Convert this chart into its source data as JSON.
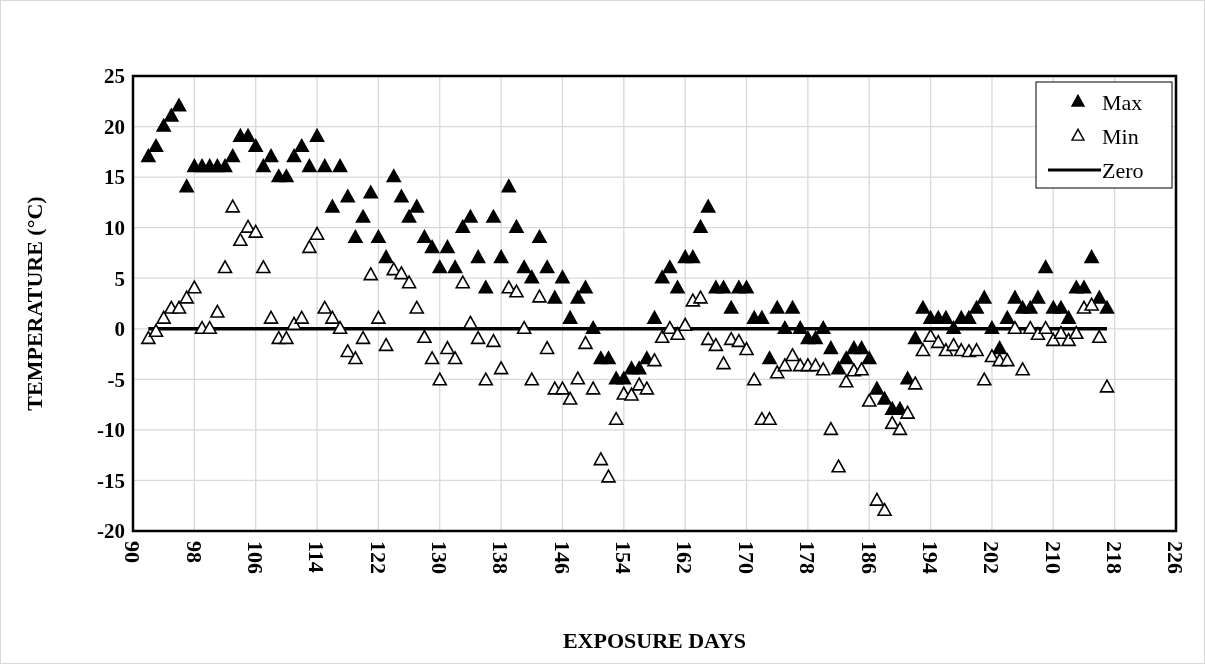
{
  "chart_data": {
    "type": "scatter",
    "xlabel": "EXPOSURE DAYS",
    "ylabel": "TEMPERATURE (°C)",
    "x": [
      92,
      93,
      94,
      95,
      96,
      97,
      98,
      99,
      100,
      101,
      102,
      103,
      104,
      105,
      106,
      107,
      108,
      109,
      110,
      111,
      112,
      113,
      114,
      115,
      116,
      117,
      118,
      119,
      120,
      121,
      122,
      123,
      124,
      125,
      126,
      127,
      128,
      129,
      130,
      131,
      132,
      133,
      134,
      135,
      136,
      137,
      138,
      139,
      140,
      141,
      142,
      143,
      144,
      145,
      146,
      147,
      148,
      149,
      150,
      151,
      152,
      153,
      154,
      155,
      156,
      157,
      158,
      159,
      160,
      161,
      162,
      163,
      164,
      165,
      166,
      167,
      168,
      169,
      170,
      171,
      172,
      173,
      174,
      175,
      176,
      177,
      178,
      179,
      180,
      181,
      182,
      183,
      184,
      185,
      186,
      187,
      188,
      189,
      190,
      191,
      192,
      193,
      194,
      195,
      196,
      197,
      198,
      199,
      200,
      201,
      202,
      203,
      204,
      205,
      206,
      207,
      208,
      209,
      210,
      211,
      212,
      213,
      214,
      215,
      216,
      217
    ],
    "series": [
      {
        "name": "Max",
        "color": "#000000",
        "marker": "triangle",
        "values": [
          17,
          18,
          20,
          21,
          22,
          14,
          16,
          16,
          16,
          16,
          16,
          17,
          19,
          19,
          18,
          16,
          17,
          15,
          15,
          17,
          18,
          16,
          19,
          16,
          12,
          16,
          13,
          9,
          11,
          13.4,
          9,
          7,
          15,
          13,
          11,
          12,
          9,
          8,
          6,
          8,
          6,
          10,
          11,
          7,
          4,
          11,
          7,
          14,
          10,
          6,
          5,
          9,
          6,
          3,
          5,
          1,
          3,
          4,
          0,
          -3,
          -3,
          -5,
          -5,
          -4,
          -4,
          -3,
          1,
          5,
          6,
          4,
          7,
          7,
          10,
          12,
          4,
          4,
          2,
          4,
          4,
          1,
          1,
          -3,
          2,
          0,
          2,
          0,
          -1,
          -1,
          0,
          -2,
          -4,
          -3,
          -2,
          -2,
          -3,
          -6,
          -7,
          -8,
          -8,
          -5,
          -1,
          2,
          1,
          1,
          1,
          0,
          1,
          1,
          2,
          3,
          0,
          -2,
          1,
          3,
          2,
          2,
          3,
          6,
          2,
          2,
          1,
          4,
          4,
          7,
          3,
          2
        ]
      },
      {
        "name": "Min",
        "color": "#000000",
        "marker": "triangle",
        "values": [
          -1,
          -0.3,
          1,
          2,
          2,
          3,
          4,
          0,
          0,
          1.6,
          6,
          12,
          8.7,
          10,
          9.5,
          6,
          1,
          -1,
          -1,
          0.4,
          1,
          8,
          9.3,
          2,
          1,
          0,
          -2.3,
          -3,
          -1,
          5.3,
          1,
          -1.7,
          5.8,
          5.4,
          4.5,
          2,
          -0.9,
          -3,
          -5.1,
          -2,
          -3,
          4.5,
          0.5,
          -1,
          -5.1,
          -1.3,
          -4,
          4,
          3.6,
          0,
          -5.1,
          3.1,
          -2,
          -6,
          -6,
          -7,
          -5,
          -1.5,
          -6,
          -13,
          -14.7,
          -9,
          -6.5,
          -6.6,
          -5.6,
          -6,
          -3.2,
          -0.9,
          0,
          -0.6,
          0.3,
          2.7,
          3,
          -1.1,
          -1.7,
          -3.5,
          -1.1,
          -1.3,
          -2.1,
          -5.1,
          -9,
          -9,
          -4.4,
          -3.7,
          -2.7,
          -3.7,
          -3.7,
          -3.7,
          -4.1,
          -10,
          -13.7,
          -5.3,
          -4.2,
          -4.1,
          -7.2,
          -17,
          -18,
          -9.4,
          -10,
          -8.4,
          -5.5,
          -2.2,
          -0.8,
          -1.4,
          -2.2,
          -1.7,
          -2.2,
          -2.3,
          -2.2,
          -5.1,
          -2.8,
          -3.2,
          -3.2,
          0,
          -4.1,
          0,
          -0.6,
          0,
          -1.2,
          -0.5,
          -1.2,
          -0.5,
          2,
          2.3,
          -0.9,
          -5.8
        ]
      },
      {
        "name": "Zero",
        "type": "line",
        "color": "#000000",
        "line_style": "solid",
        "x": [
          92,
          217
        ],
        "values": [
          0,
          0
        ]
      }
    ],
    "xlim": [
      90,
      226
    ],
    "xticks": [
      90,
      98,
      106,
      114,
      122,
      130,
      138,
      146,
      154,
      162,
      170,
      178,
      186,
      194,
      202,
      210,
      218,
      226
    ],
    "ylim": [
      -20,
      25
    ],
    "yticks": [
      -20,
      -15,
      -10,
      -5,
      0,
      5,
      10,
      15,
      20,
      25
    ],
    "grid": true,
    "legend": "top right"
  }
}
